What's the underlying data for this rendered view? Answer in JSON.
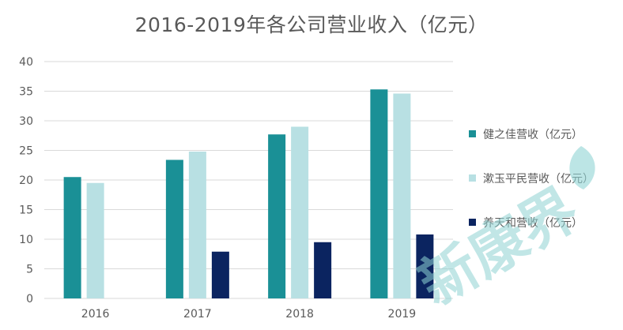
{
  "chart_data": {
    "type": "bar",
    "title": "2016-2019年各公司营业收入（亿元）",
    "categories": [
      "2016",
      "2017",
      "2018",
      "2019"
    ],
    "series": [
      {
        "name": "健之佳营收（亿元）",
        "values": [
          20.5,
          23.4,
          27.7,
          35.3
        ],
        "color": "#1a9096"
      },
      {
        "name": "漱玉平民营收（亿元）",
        "values": [
          19.5,
          24.8,
          29.0,
          34.6
        ],
        "color": "#b8e0e3"
      },
      {
        "name": "养天和营收（亿元）",
        "values": [
          null,
          7.9,
          9.5,
          10.8
        ],
        "color": "#0b2460"
      }
    ],
    "yticks": [
      0,
      5,
      10,
      15,
      20,
      25,
      30,
      35,
      40
    ],
    "ylim": [
      0,
      40
    ],
    "grid": true,
    "legend_position": "right"
  },
  "colors": {
    "grid": "#d9d9d9",
    "axis_text": "#595959",
    "watermark": "#8fd3d3"
  },
  "watermark": {
    "text": "新康界",
    "icon": "leaf-icon"
  }
}
